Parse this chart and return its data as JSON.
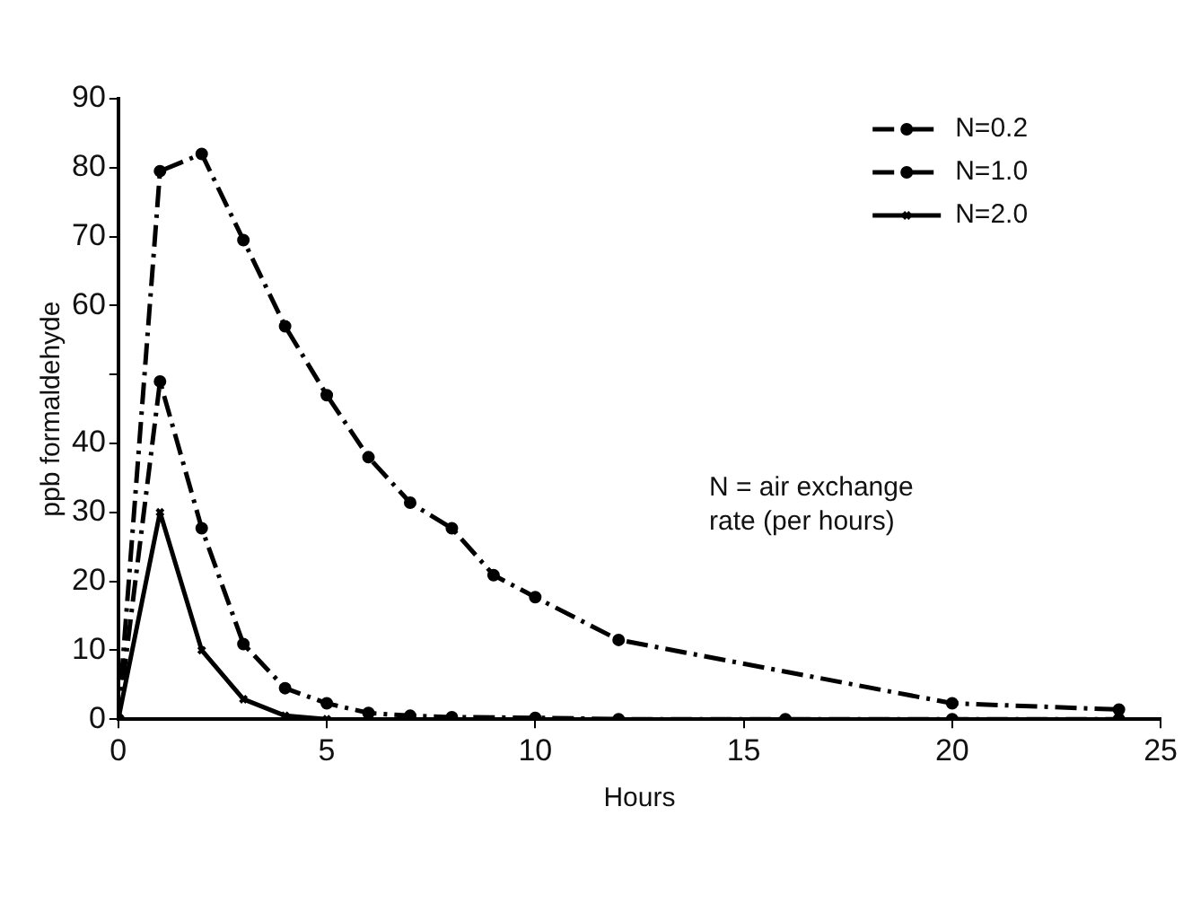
{
  "chart_data": {
    "type": "line",
    "xlabel": "Hours",
    "ylabel": "ppb formaldehyde",
    "xlim": [
      0,
      25
    ],
    "xticks": [
      0,
      5,
      10,
      15,
      20,
      25
    ],
    "ylim": [
      0,
      90
    ],
    "yticks": [
      0,
      10,
      20,
      30,
      40,
      {
        "value": 50,
        "label": null
      },
      60,
      70,
      80,
      90
    ],
    "grid": false,
    "legend": "top right",
    "annotations": [
      "N = air exchange rate (per hours)"
    ],
    "series": [
      {
        "name": "N=0.2",
        "color": "#000000",
        "marker": "circle",
        "line_style": "dashed",
        "x": [
          0,
          1,
          2,
          3,
          4,
          5,
          6,
          7,
          8,
          9,
          10,
          12,
          20,
          24
        ],
        "values": [
          0,
          79.5,
          82,
          69.5,
          57,
          47,
          38,
          31.4,
          27.7,
          20.9,
          17.7,
          11.5,
          2.3,
          1.4
        ]
      },
      {
        "name": "N=1.0",
        "color": "#000000",
        "marker": "circle",
        "line_style": "dashed",
        "x": [
          0,
          1,
          2,
          3,
          4,
          5,
          6,
          7,
          8,
          10,
          12,
          16,
          20,
          24
        ],
        "values": [
          0,
          49,
          27.7,
          10.9,
          4.5,
          2.3,
          0.9,
          0.5,
          0.3,
          0.2,
          0,
          0,
          0,
          0
        ]
      },
      {
        "name": "N=2.0",
        "color": "#000000",
        "marker": "cross",
        "line_style": "solid",
        "x": [
          0,
          1,
          2,
          3,
          4,
          5
        ],
        "values": [
          0,
          30,
          10,
          2.9,
          0.5,
          0
        ]
      }
    ]
  }
}
